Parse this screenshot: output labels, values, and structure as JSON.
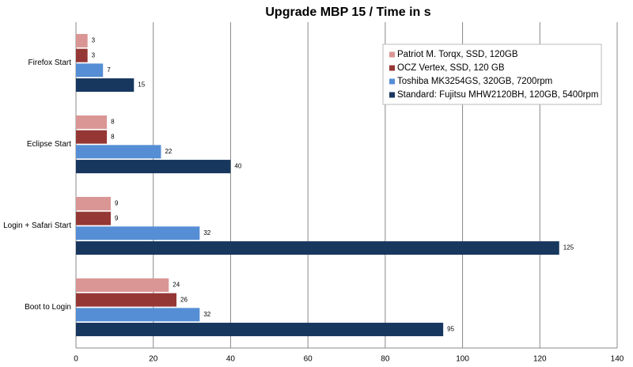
{
  "chart_data": {
    "type": "bar",
    "orientation": "horizontal",
    "title": "Upgrade MBP 15 / Time in s",
    "categories": [
      "Firefox Start",
      "Eclipse Start",
      "Login + Safari Start",
      "Boot to Login"
    ],
    "series": [
      {
        "name": "Patriot M. Torqx, SSD, 120GB",
        "color": "#d99694",
        "values": [
          3,
          8,
          9,
          24
        ]
      },
      {
        "name": "OCZ Vertex, SSD, 120 GB",
        "color": "#953735",
        "values": [
          3,
          8,
          9,
          26
        ]
      },
      {
        "name": "Toshiba MK3254GS, 320GB, 7200rpm",
        "color": "#558ed5",
        "values": [
          7,
          22,
          32,
          32
        ]
      },
      {
        "name": "Standard: Fujitsu MHW2120BH, 120GB, 5400rpm",
        "color": "#17375e",
        "values": [
          15,
          40,
          125,
          95
        ]
      }
    ],
    "xlim": [
      0,
      140
    ],
    "xticks": [
      0,
      20,
      40,
      60,
      80,
      100,
      120,
      140
    ],
    "grid": true,
    "legend": "upper right"
  }
}
